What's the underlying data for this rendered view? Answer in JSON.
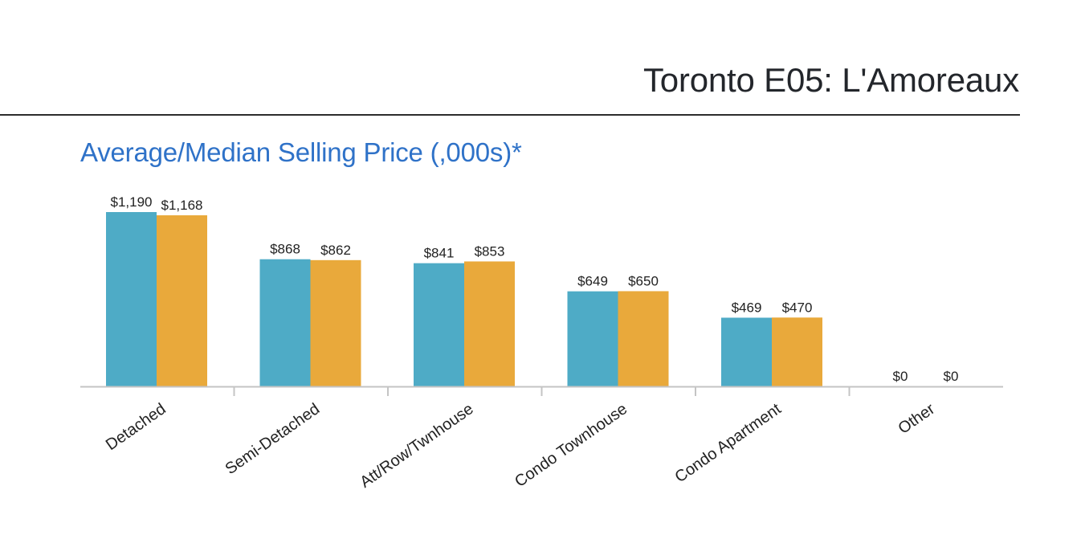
{
  "header": {
    "title": "Toronto E05: L'Amoreaux"
  },
  "colors": {
    "average": "#4eabc6",
    "median": "#e9a93b",
    "axis": "#c4c4c4",
    "label": "#222222",
    "heading": "#2f72c8"
  },
  "chart_data": {
    "type": "bar",
    "title": "Average/Median Selling Price (,000s)*",
    "xlabel": "",
    "ylabel": "",
    "ylim": [
      0,
      1190
    ],
    "grid": false,
    "categories": [
      "Detached",
      "Semi-Detached",
      "Att/Row/Twnhouse",
      "Condo Townhouse",
      "Condo Apartment",
      "Other"
    ],
    "series": [
      {
        "values": [
          1190,
          868,
          841,
          649,
          469,
          0
        ],
        "labels": [
          "$1,190",
          "$868",
          "$841",
          "$649",
          "$469",
          "$0"
        ],
        "color": "#4eabc6"
      },
      {
        "values": [
          1168,
          862,
          853,
          650,
          470,
          0
        ],
        "labels": [
          "$1,168",
          "$862",
          "$853",
          "$650",
          "$470",
          "$0"
        ],
        "color": "#e9a93b"
      }
    ]
  }
}
